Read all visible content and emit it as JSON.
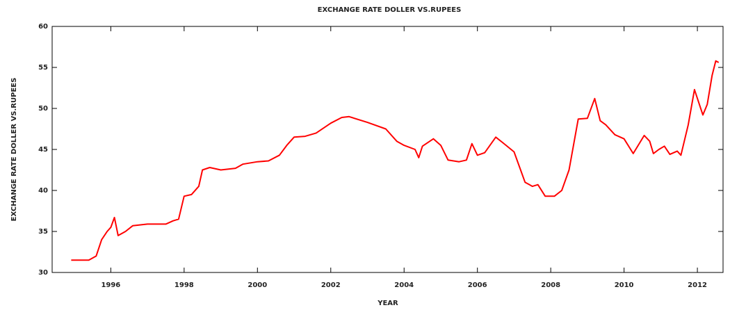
{
  "chart_data": {
    "type": "line",
    "title": "EXCHANGE RATE DOLLER VS.RUPEES",
    "x_label": "YEAR",
    "y_label": "EXCHANGE RATE DOLLER VS.RUPEES",
    "color": "#ff0000",
    "x": [
      1994.92,
      1995.2,
      1995.4,
      1995.6,
      1995.75,
      1995.9,
      1996.0,
      1996.1,
      1996.2,
      1996.4,
      1996.6,
      1997.0,
      1997.5,
      1997.7,
      1997.85,
      1998.0,
      1998.2,
      1998.4,
      1998.5,
      1998.7,
      1999.0,
      1999.4,
      1999.6,
      2000.0,
      2000.3,
      2000.6,
      2000.8,
      2001.0,
      2001.3,
      2001.6,
      2002.0,
      2002.3,
      2002.5,
      2003.0,
      2003.5,
      2003.8,
      2004.0,
      2004.3,
      2004.4,
      2004.5,
      2004.8,
      2005.0,
      2005.2,
      2005.5,
      2005.7,
      2005.85,
      2006.0,
      2006.2,
      2006.5,
      2006.7,
      2007.0,
      2007.3,
      2007.5,
      2007.65,
      2007.85,
      2008.1,
      2008.3,
      2008.5,
      2008.75,
      2009.0,
      2009.2,
      2009.35,
      2009.5,
      2009.75,
      2010.0,
      2010.25,
      2010.55,
      2010.7,
      2010.8,
      2010.95,
      2011.1,
      2011.25,
      2011.45,
      2011.55,
      2011.75,
      2011.92,
      2012.15,
      2012.27,
      2012.4,
      2012.5,
      2012.58
    ],
    "values": [
      31.5,
      31.5,
      31.5,
      32.0,
      34.0,
      35.0,
      35.5,
      36.7,
      34.5,
      35.0,
      35.7,
      35.9,
      35.9,
      36.3,
      36.5,
      39.3,
      39.5,
      40.5,
      42.5,
      42.8,
      42.5,
      42.7,
      43.2,
      43.5,
      43.6,
      44.3,
      45.5,
      46.5,
      46.6,
      47.0,
      48.2,
      48.9,
      49.0,
      48.3,
      47.5,
      46.0,
      45.5,
      45.0,
      44.0,
      45.4,
      46.3,
      45.5,
      43.7,
      43.5,
      43.7,
      45.7,
      44.3,
      44.6,
      46.5,
      45.8,
      44.7,
      41.0,
      40.5,
      40.7,
      39.3,
      39.3,
      40.0,
      42.5,
      48.7,
      48.8,
      51.2,
      48.5,
      48.0,
      46.8,
      46.3,
      44.5,
      46.7,
      46.0,
      44.5,
      45.0,
      45.4,
      44.4,
      44.8,
      44.3,
      48.0,
      52.3,
      49.2,
      50.5,
      54.0,
      55.8,
      55.6
    ],
    "xlim": [
      1994.4,
      2012.7
    ],
    "ylim": [
      30,
      60
    ],
    "xticks": [
      1996,
      1998,
      2000,
      2002,
      2004,
      2006,
      2008,
      2010,
      2012
    ],
    "yticks": [
      30,
      35,
      40,
      45,
      50,
      55,
      60
    ]
  }
}
